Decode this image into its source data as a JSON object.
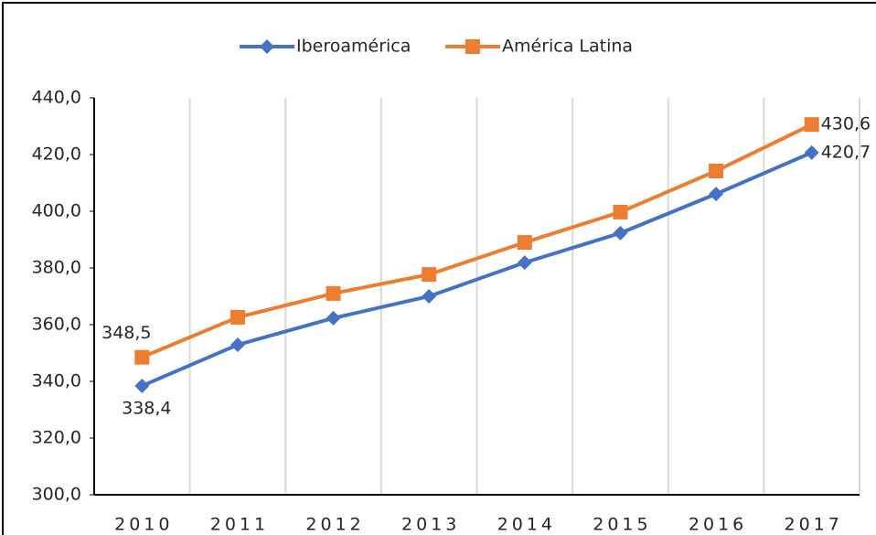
{
  "chart_data": {
    "type": "line",
    "categories": [
      "2010",
      "2011",
      "2012",
      "2013",
      "2014",
      "2015",
      "2016",
      "2017"
    ],
    "series": [
      {
        "name": "Iberoamérica",
        "color": "#4472c4",
        "marker": "diamond",
        "values": [
          338.4,
          352.9,
          362.3,
          370.0,
          381.9,
          392.3,
          406.1,
          420.7
        ],
        "value_labels": [
          "338,4",
          null,
          null,
          null,
          null,
          null,
          null,
          "420,7"
        ]
      },
      {
        "name": "América Latina",
        "color": "#ed7d31",
        "marker": "square",
        "values": [
          348.5,
          362.6,
          371.0,
          377.7,
          389.0,
          399.7,
          414.2,
          430.6
        ],
        "value_labels": [
          "348,5",
          null,
          null,
          null,
          null,
          null,
          null,
          "430,6"
        ]
      }
    ],
    "ylim": [
      300,
      440
    ],
    "yticks": [
      {
        "value": 300,
        "label": "300,0"
      },
      {
        "value": 320,
        "label": "320,0"
      },
      {
        "value": 340,
        "label": "340,0"
      },
      {
        "value": 360,
        "label": "360,0"
      },
      {
        "value": 380,
        "label": "380,0"
      },
      {
        "value": 400,
        "label": "400,0"
      },
      {
        "value": 420,
        "label": "420,0"
      },
      {
        "value": 440,
        "label": "440,0"
      }
    ],
    "grid": true,
    "legend": "top"
  }
}
